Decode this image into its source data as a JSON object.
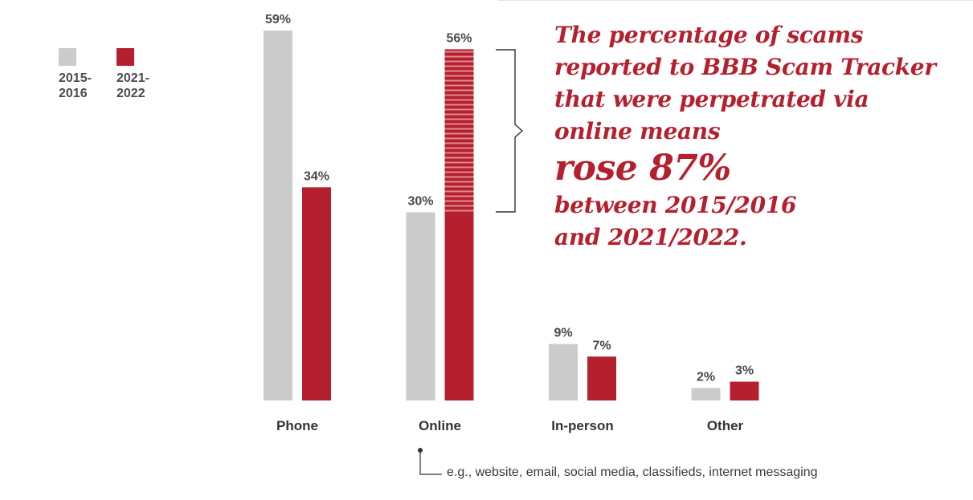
{
  "legend": {
    "items": [
      {
        "label": "2015-\n2016",
        "color": "#cbcbcb"
      },
      {
        "label": "2021-\n2022",
        "color": "#b5202e"
      }
    ]
  },
  "annotation": {
    "line1": "The percentage of scams",
    "line2": "reported to BBB Scam Tracker",
    "line3": "that were perpetrated via",
    "line4": "online means",
    "highlight": "rose 87%",
    "line5": "between 2015/2016",
    "line6": "and 2021/2022."
  },
  "footnote": "e.g., website, email, social media, classifieds, internet messaging",
  "chart_data": {
    "type": "bar",
    "categories": [
      "Phone",
      "Online",
      "In-person",
      "Other"
    ],
    "series": [
      {
        "name": "2015-2016",
        "values": [
          59,
          30,
          9,
          2
        ],
        "labels": [
          "59%",
          "30%",
          "9%",
          "2%"
        ],
        "color": "#cbcbcb"
      },
      {
        "name": "2021-2022",
        "values": [
          34,
          56,
          7,
          3
        ],
        "labels": [
          "34%",
          "56%",
          "7%",
          "3%"
        ],
        "color": "#b5202e"
      }
    ],
    "ylim": [
      0,
      59
    ],
    "grid": false,
    "legend": "top-left",
    "title": "",
    "xlabel": "",
    "ylabel": ""
  }
}
